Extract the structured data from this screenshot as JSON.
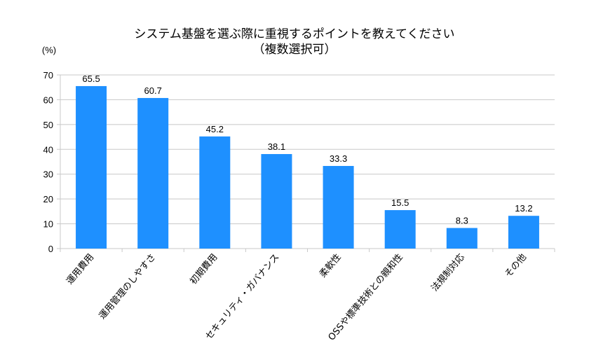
{
  "chart_data": {
    "type": "bar",
    "title": "システム基盤を選ぶ際に重視するポイントを教えてください",
    "subtitle": "（複数選択可）",
    "xlabel": "",
    "ylabel": "(%)",
    "ylim": [
      0,
      70
    ],
    "yticks": [
      0,
      10,
      20,
      30,
      40,
      50,
      60,
      70
    ],
    "grid": true,
    "legend": "none",
    "bar_color": "#1e90ff",
    "categories": [
      "運用費用",
      "運用管理のしやすさ",
      "初期費用",
      "セキュリティ・ガバナンス",
      "柔軟性",
      "OSSや標準技術との親和性",
      "法規制対応",
      "その他"
    ],
    "values": [
      65.5,
      60.7,
      45.2,
      38.1,
      33.3,
      15.5,
      8.3,
      13.2
    ],
    "data_labels": [
      "65.5",
      "60.7",
      "45.2",
      "38.1",
      "33.3",
      "15.5",
      "8.3",
      "13.2"
    ]
  }
}
